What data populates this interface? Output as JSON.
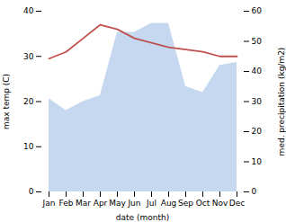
{
  "chart_data": {
    "type": "line",
    "xlabel": "date (month)",
    "ylabel": "max temp (C)",
    "y2label": "med. precipitation (kg/m2)",
    "categories": [
      "Jan",
      "Feb",
      "Mar",
      "Apr",
      "May",
      "Jun",
      "Jul",
      "Aug",
      "Sep",
      "Oct",
      "Nov",
      "Dec"
    ],
    "series": [
      {
        "type": "line",
        "color": "#c0504d",
        "values": [
          29.5,
          31.0,
          34.0,
          37.0,
          36.0,
          34.0,
          33.0,
          32.0,
          31.5,
          31.0,
          30.0,
          30.0
        ]
      },
      {
        "type": "area",
        "axis": "y2",
        "color": "#c5d8f0",
        "values": [
          31.0,
          27.0,
          30.0,
          32.0,
          53.0,
          53.0,
          56.0,
          56.0,
          35.0,
          33.0,
          42.0,
          43.0
        ]
      }
    ],
    "ylim": [
      0,
      40
    ],
    "yticks": [
      0,
      10,
      20,
      30,
      40
    ],
    "y2lim": [
      0,
      60
    ],
    "y2ticks": [
      0,
      10,
      20,
      30,
      40,
      50,
      60
    ]
  }
}
